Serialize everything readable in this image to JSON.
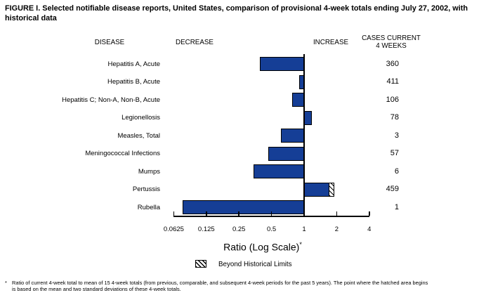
{
  "figure": {
    "title_lines": [
      "FIGURE I. Selected notifiable disease reports, United States, comparison of provisional 4-week totals ending July 27, 2002, with",
      "historical data"
    ],
    "footnote_marker": "*",
    "footnote_lines": [
      "Ratio of current 4-week total to mean of 15 4-week totals (from previous, comparable, and subsequent 4-week periods for the past 5 years). The point where the hatched area begins",
      "is based on the mean and two standard deviations of these 4-week totals."
    ]
  },
  "columns": {
    "disease": "DISEASE",
    "decrease": "DECREASE",
    "increase": "INCREASE",
    "cases_line1": "CASES CURRENT",
    "cases_line2": "4 WEEKS"
  },
  "chart_data": {
    "type": "bar",
    "orientation": "horizontal",
    "scale": "log2",
    "xlabel": "Ratio (Log Scale)",
    "xlabel_marker": "*",
    "ticks": [
      0.0625,
      0.125,
      0.25,
      0.5,
      1,
      2,
      4
    ],
    "xlim": [
      0.0625,
      4
    ],
    "baseline": 1,
    "bar_color": "#153E96",
    "legend": {
      "label": "Beyond Historical Limits",
      "swatch": "diagonal-hatch"
    },
    "rows": [
      {
        "disease": "Hepatitis A, Acute",
        "ratio": 0.39,
        "cases": "360"
      },
      {
        "disease": "Hepatitis B, Acute",
        "ratio": 0.9,
        "cases": "411"
      },
      {
        "disease": "Hepatitis C; Non-A, Non-B, Acute",
        "ratio": 0.78,
        "cases": "106"
      },
      {
        "disease": "Legionellosis",
        "ratio": 1.18,
        "cases": "78"
      },
      {
        "disease": "Measles, Total",
        "ratio": 0.61,
        "cases": "3"
      },
      {
        "disease": "Meningococcal Infections",
        "ratio": 0.47,
        "cases": "57"
      },
      {
        "disease": "Mumps",
        "ratio": 0.34,
        "cases": "6"
      },
      {
        "disease": "Pertussis",
        "ratio": 1.9,
        "beyond_limits_from": 1.69,
        "cases": "459"
      },
      {
        "disease": "Rubella",
        "ratio": 0.075,
        "cases": "1"
      }
    ]
  }
}
